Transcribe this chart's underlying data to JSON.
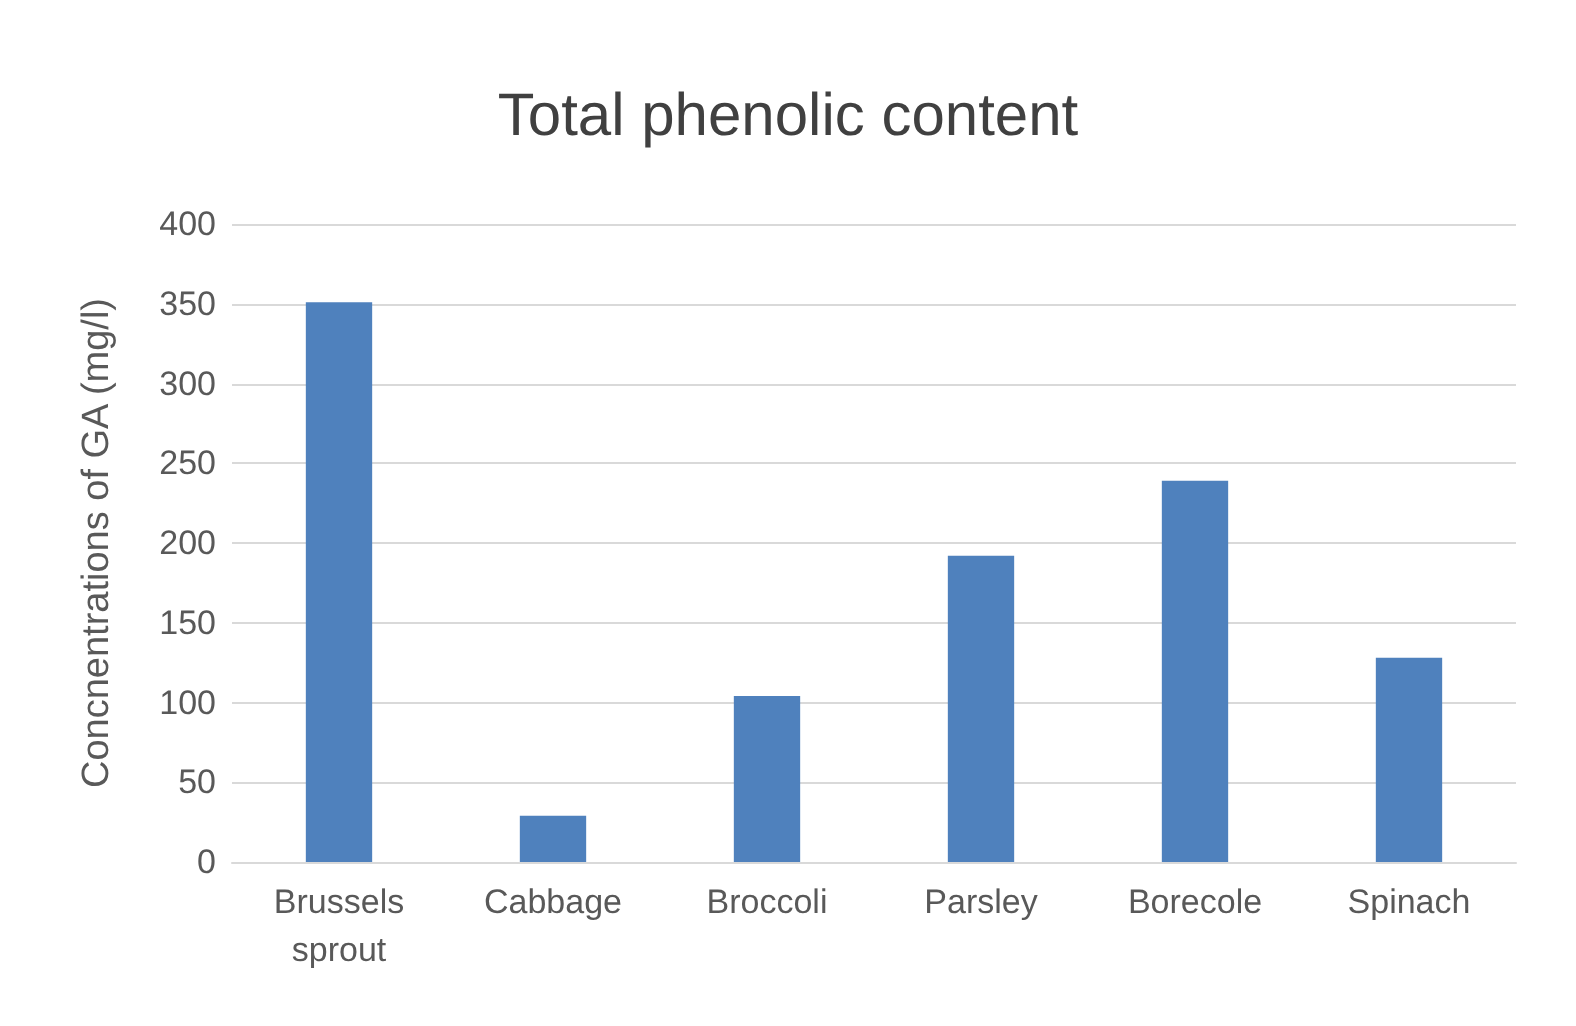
{
  "chart_data": {
    "type": "bar",
    "title": "Total phenolic content",
    "ylabel": "Concnentrations of GA (mg/l)",
    "categories": [
      "Brussels\nsprout",
      "Cabbage",
      "Broccoli",
      "Parsley",
      "Borecole",
      "Spinach"
    ],
    "values": [
      351,
      29,
      104,
      192,
      239,
      128
    ],
    "color": "#4f81bd",
    "ylim": [
      0,
      400
    ],
    "yticks": [
      0,
      50,
      100,
      150,
      200,
      250,
      300,
      350,
      400
    ],
    "grid": "y"
  }
}
